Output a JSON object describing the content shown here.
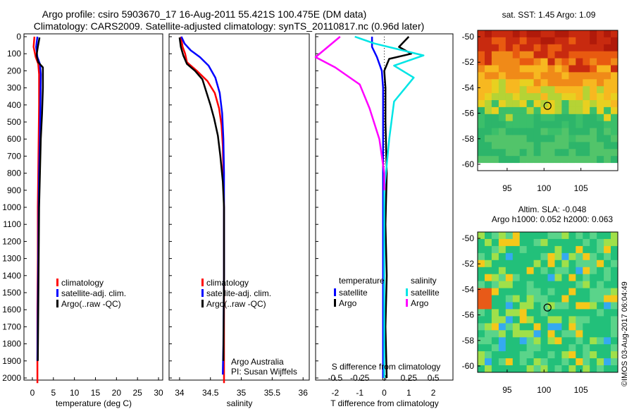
{
  "title": {
    "line1": "Argo profile: csiro 5903670_17 16-Aug-2011 55.421S 100.475E (DM data)",
    "line2": "Climatology: CARS2009. Satellite-adjusted climatology: synTS_20110817.nc (0.96d later)"
  },
  "colors": {
    "climatology": "#ff0000",
    "satellite": "#0000ff",
    "argo": "#000000",
    "sal_satellite": "#00e5e5",
    "sal_argo": "#ff00ff"
  },
  "depth_ticks": [
    "0",
    "100",
    "200",
    "300",
    "400",
    "500",
    "600",
    "700",
    "800",
    "900",
    "1000",
    "1100",
    "1200",
    "1300",
    "1400",
    "1500",
    "1600",
    "1700",
    "1800",
    "1900",
    "2000"
  ],
  "chart_data": [
    {
      "type": "line",
      "xlabel": "temperature (deg C)",
      "ylabel": "",
      "xlim": [
        -2,
        31
      ],
      "ylim": [
        2050,
        0
      ],
      "xticks": [
        "0",
        "5",
        "10",
        "15",
        "20",
        "25",
        "30"
      ],
      "legend": [
        "climatology",
        "satellite-adj. clim.",
        "Argo(..raw -QC)"
      ],
      "series": [
        {
          "name": "climatology",
          "x": [
            0.5,
            0.3,
            0.8,
            1.4,
            1.6,
            1.6,
            1.5,
            1.4,
            1.3,
            1.3,
            1.2,
            1.2,
            1.2
          ],
          "depth": [
            0,
            60,
            120,
            160,
            220,
            400,
            600,
            800,
            1000,
            1300,
            1600,
            1900,
            2030
          ]
        },
        {
          "name": "satellite-adj. clim.",
          "x": [
            1.2,
            0.9,
            1.2,
            1.8,
            2.0,
            1.9,
            1.8,
            1.6,
            1.5,
            1.4,
            1.3,
            1.2
          ],
          "depth": [
            0,
            60,
            120,
            160,
            220,
            400,
            600,
            800,
            1000,
            1300,
            1600,
            1900
          ]
        },
        {
          "name": "Argo(..raw -QC)",
          "x": [
            1.7,
            1.3,
            1.0,
            1.4,
            2.5,
            2.5,
            2.3,
            2.0,
            1.8,
            1.6,
            1.5,
            1.4,
            1.3
          ],
          "depth": [
            5,
            60,
            110,
            150,
            180,
            300,
            450,
            600,
            800,
            1000,
            1300,
            1600,
            1900
          ]
        }
      ]
    },
    {
      "type": "line",
      "xlabel": "salinity",
      "ylabel": "",
      "xlim": [
        33.83,
        36.1
      ],
      "ylim": [
        2050,
        0
      ],
      "xticks": [
        "34",
        "34.5",
        "35",
        "35.5",
        "36"
      ],
      "legend": [
        "climatology",
        "satellite-adj. clim.",
        "Argo(..raw -QC)"
      ],
      "annotation": [
        "Argo Australia",
        "PI: Susan Wijffels"
      ],
      "series": [
        {
          "name": "climatology",
          "x": [
            34.02,
            34.05,
            34.09,
            34.12,
            34.28,
            34.45,
            34.57,
            34.64,
            34.68,
            34.7,
            34.71,
            34.72,
            34.72,
            34.72,
            34.72
          ],
          "depth": [
            0,
            60,
            100,
            150,
            200,
            260,
            330,
            420,
            520,
            640,
            800,
            1000,
            1400,
            1800,
            2030
          ]
        },
        {
          "name": "satellite-adj. clim.",
          "x": [
            34.03,
            34.08,
            34.18,
            34.33,
            34.47,
            34.58,
            34.65,
            34.69,
            34.71,
            34.72,
            34.72,
            34.72,
            34.71,
            34.7
          ],
          "depth": [
            0,
            40,
            80,
            120,
            170,
            240,
            330,
            450,
            600,
            800,
            1000,
            1400,
            1800,
            1980
          ]
        },
        {
          "name": "Argo(..raw -QC)",
          "x": [
            34.0,
            34.02,
            34.06,
            34.12,
            34.25,
            34.37,
            34.43,
            34.5,
            34.56,
            34.62,
            34.66,
            34.7,
            34.72,
            34.72,
            34.71
          ],
          "depth": [
            5,
            60,
            110,
            160,
            200,
            250,
            320,
            400,
            480,
            580,
            700,
            850,
            1000,
            1400,
            1900
          ]
        }
      ]
    },
    {
      "type": "line",
      "xlabel": "T difference from climatology",
      "top_label": "S difference from climatology",
      "xlim": [
        -2.8,
        2.8
      ],
      "ylim": [
        2050,
        0
      ],
      "xticks": [
        "-2",
        "-1",
        "0",
        "1",
        "2"
      ],
      "top_ticks": [
        "-0.5",
        "-0.25",
        "0",
        "0.25",
        "0.5"
      ],
      "legend_headers": [
        "temperature",
        "salinity"
      ],
      "legend": [
        "satellite",
        "Argo",
        "satellite",
        "Argo"
      ],
      "series": [
        {
          "name": "satellite",
          "x": [
            -0.5,
            -0.5,
            -0.3,
            -0.1,
            -0.05,
            -0.05,
            -0.05,
            -0.05,
            -0.05,
            -0.05,
            -0.05
          ],
          "depth": [
            0,
            60,
            120,
            200,
            300,
            500,
            800,
            1100,
            1400,
            1700,
            2000
          ]
        },
        {
          "name": "Argo",
          "x": [
            1.0,
            0.6,
            1.1,
            0.2,
            0.0,
            0.05,
            0.05,
            0.1,
            0.05,
            0.1,
            0.05,
            0.1
          ],
          "depth": [
            0,
            60,
            100,
            130,
            200,
            300,
            500,
            800,
            1100,
            1400,
            1700,
            2000
          ]
        },
        {
          "name": "satellite",
          "x": [
            -0.3,
            -0.1,
            0.4,
            0.1,
            0.3,
            0.1,
            0.05,
            0.0,
            0.0,
            0.0
          ],
          "depth": [
            0,
            40,
            110,
            170,
            240,
            380,
            600,
            900,
            1400,
            2000
          ]
        },
        {
          "name": "Argo",
          "x": [
            -0.45,
            -0.7,
            -0.5,
            -0.25,
            -0.15,
            -0.05,
            0.0,
            0.0
          ],
          "depth": [
            0,
            120,
            180,
            280,
            420,
            600,
            800,
            900
          ]
        }
      ]
    },
    {
      "type": "heatmap",
      "title": "sat. SST: 1.45 Argo: 1.09",
      "xticks": [
        "95",
        "100",
        "105"
      ],
      "yticks": [
        "-50",
        "-52",
        "-54",
        "-56",
        "-58",
        "-60"
      ],
      "marker": {
        "lon": 100.475,
        "lat": -55.421
      }
    },
    {
      "type": "heatmap",
      "title": "Altim. SLA: -0.048",
      "subtitle": "Argo h1000: 0.052 h2000: 0.063",
      "xticks": [
        "95",
        "100",
        "105"
      ],
      "yticks": [
        "-50",
        "-52",
        "-54",
        "-56",
        "-58",
        "-60"
      ],
      "marker": {
        "lon": 100.475,
        "lat": -55.421
      }
    }
  ],
  "credit": "©IMOS 03-Aug-2017 06:04:49"
}
